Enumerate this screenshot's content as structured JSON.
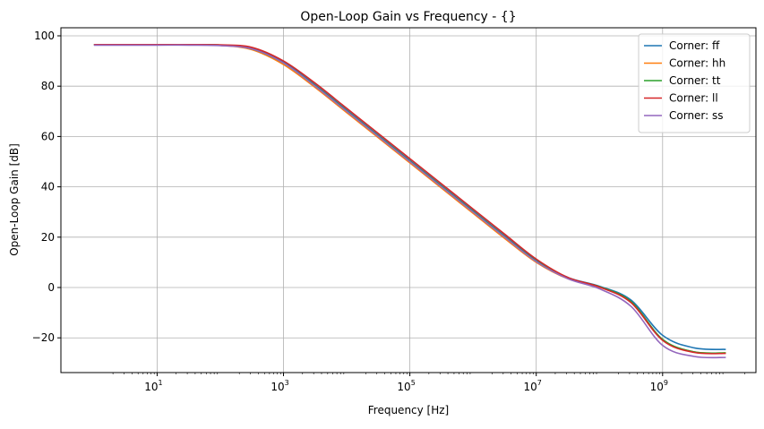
{
  "chart_data": {
    "type": "line",
    "title": "Open-Loop Gain vs Frequency - {}",
    "xlabel": "Frequency [Hz]",
    "ylabel": "Open-Loop Gain [dB]",
    "xscale": "log",
    "xlim": [
      0.3,
      30000000000
    ],
    "ylim": [
      -33.8,
      103.2
    ],
    "grid": true,
    "legend": "upper right",
    "xticks": [
      {
        "v": 10,
        "base": "10",
        "exp": "1"
      },
      {
        "v": 1000,
        "base": "10",
        "exp": "3"
      },
      {
        "v": 100000,
        "base": "10",
        "exp": "5"
      },
      {
        "v": 10000000,
        "base": "10",
        "exp": "7"
      },
      {
        "v": 1000000000,
        "base": "10",
        "exp": "9"
      }
    ],
    "yticks": [
      {
        "v": -20,
        "label": "−20"
      },
      {
        "v": 0,
        "label": "0"
      },
      {
        "v": 20,
        "label": "20"
      },
      {
        "v": 40,
        "label": "40"
      },
      {
        "v": 60,
        "label": "60"
      },
      {
        "v": 80,
        "label": "80"
      },
      {
        "v": 100,
        "label": "100"
      }
    ],
    "x_log10": [
      0,
      0.5,
      1,
      1.5,
      2,
      2.5,
      3,
      3.5,
      4,
      4.5,
      5,
      5.5,
      6,
      6.5,
      7,
      7.5,
      8,
      8.5,
      9,
      9.5,
      10
    ],
    "series": [
      {
        "name": "Corner: ff",
        "color": "#1f77b4",
        "values": [
          96.5,
          96.5,
          96.5,
          96.5,
          96.3,
          95.0,
          89.5,
          80.5,
          70.5,
          60.5,
          50.5,
          40.5,
          30.5,
          20.5,
          10.8,
          4.0,
          0.5,
          -5.0,
          -19.0,
          -24.0,
          -24.6
        ]
      },
      {
        "name": "Corner: hh",
        "color": "#ff7f0e",
        "values": [
          96.5,
          96.5,
          96.5,
          96.5,
          96.2,
          94.5,
          88.6,
          79.5,
          69.5,
          59.5,
          49.5,
          39.5,
          29.5,
          19.5,
          10.0,
          3.5,
          0.2,
          -5.8,
          -20.8,
          -25.6,
          -26.0
        ]
      },
      {
        "name": "Corner: tt",
        "color": "#2ca02c",
        "values": [
          96.5,
          96.5,
          96.5,
          96.5,
          96.3,
          94.8,
          89.2,
          80.2,
          70.2,
          60.2,
          50.2,
          40.2,
          30.2,
          20.2,
          10.5,
          3.8,
          0.3,
          -5.6,
          -20.6,
          -25.6,
          -26.0
        ]
      },
      {
        "name": "Corner: ll",
        "color": "#d62728",
        "values": [
          96.5,
          96.5,
          96.5,
          96.5,
          96.4,
          95.4,
          90.0,
          81.2,
          71.2,
          61.2,
          51.2,
          41.2,
          31.2,
          21.2,
          11.3,
          4.0,
          0.2,
          -6.0,
          -21.0,
          -25.8,
          -26.2
        ]
      },
      {
        "name": "Corner: ss",
        "color": "#9467bd",
        "values": [
          96.3,
          96.3,
          96.3,
          96.3,
          96.1,
          94.8,
          89.2,
          80.0,
          70.0,
          60.0,
          50.0,
          40.0,
          30.0,
          20.0,
          10.3,
          3.5,
          -0.5,
          -7.5,
          -23.0,
          -27.4,
          -27.8
        ]
      }
    ]
  }
}
